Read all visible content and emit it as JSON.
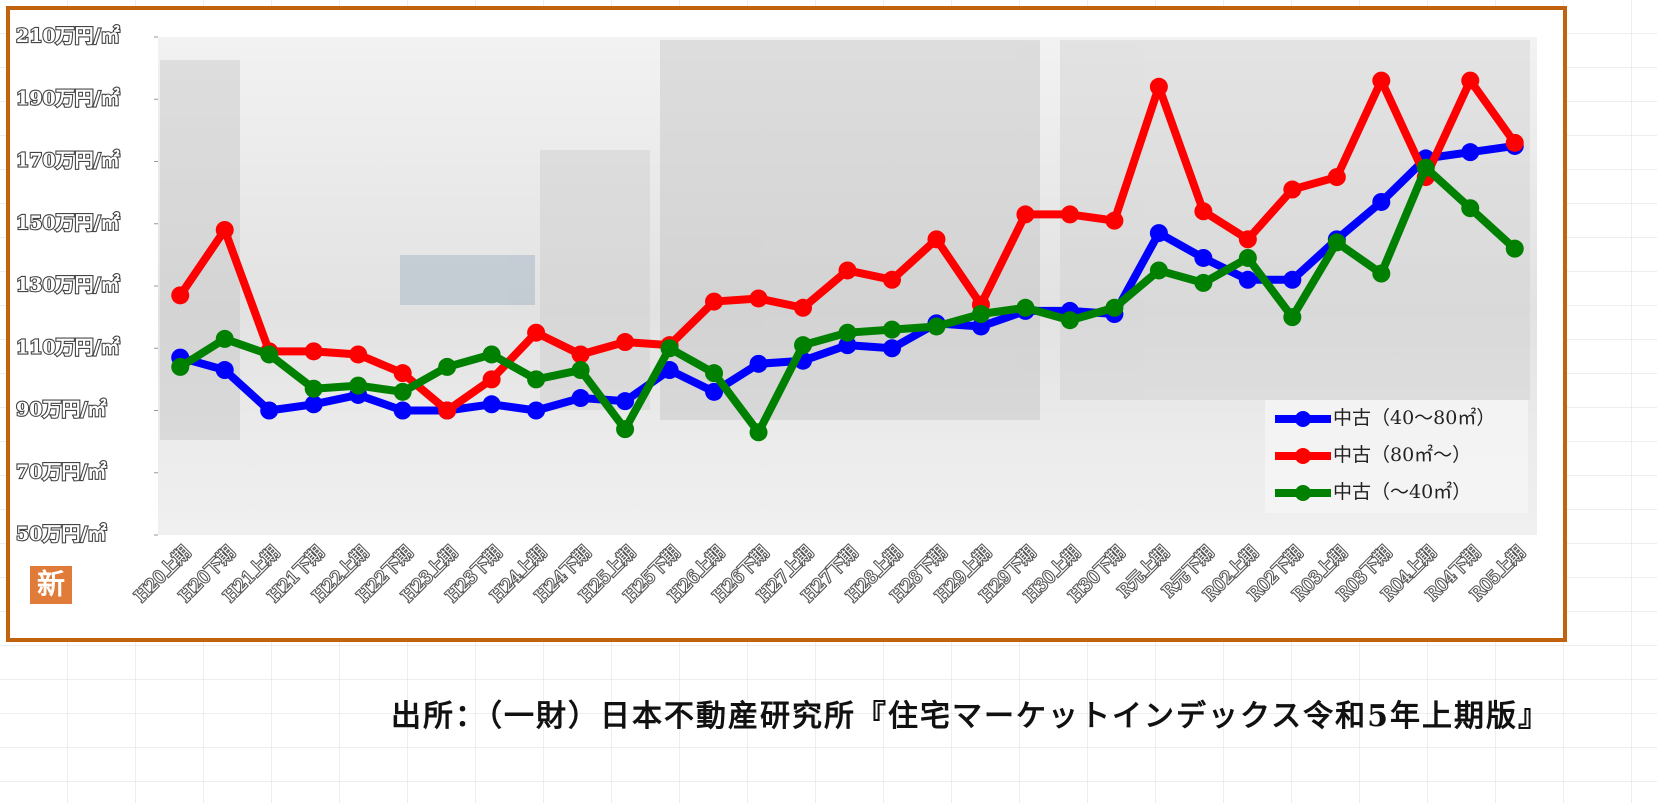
{
  "badge": "新",
  "source": "出所：（一財）日本不動産研究所『住宅マーケットインデックス令和5年上期版』",
  "chart_data": {
    "type": "line",
    "categories": [
      "H20上期",
      "H20下期",
      "H21上期",
      "H21下期",
      "H22上期",
      "H22下期",
      "H23上期",
      "H23下期",
      "H24上期",
      "H24下期",
      "H25上期",
      "H25下期",
      "H26上期",
      "H26下期",
      "H27上期",
      "H27下期",
      "H28上期",
      "H28下期",
      "H29上期",
      "H29下期",
      "H30上期",
      "H30下期",
      "R元上期",
      "R元下期",
      "R02上期",
      "R02下期",
      "R03上期",
      "R03下期",
      "R04上期",
      "R04下期",
      "R05上期"
    ],
    "series": [
      {
        "name": "中古（40～80㎡）",
        "color": "#0000ff",
        "values": [
          107,
          103,
          90,
          92,
          95,
          90,
          90,
          92,
          90,
          94,
          93,
          103,
          96,
          105,
          106,
          111,
          110,
          118,
          117,
          122,
          122,
          121,
          147,
          139,
          132,
          132,
          145,
          157,
          171,
          173,
          175
        ]
      },
      {
        "name": "中古（80㎡～）",
        "color": "#ff0000",
        "values": [
          127,
          148,
          109,
          109,
          108,
          102,
          90,
          100,
          115,
          108,
          112,
          111,
          125,
          126,
          123,
          135,
          132,
          145,
          124,
          153,
          153,
          151,
          194,
          154,
          145,
          161,
          165,
          196,
          165,
          196,
          176
        ]
      },
      {
        "name": "中古（～40㎡）",
        "color": "#008000",
        "values": [
          104,
          113,
          108,
          97,
          98,
          96,
          104,
          108,
          100,
          103,
          84,
          110,
          102,
          83,
          111,
          115,
          116,
          117,
          121,
          123,
          119,
          123,
          135,
          131,
          139,
          120,
          144,
          134,
          168,
          155,
          142
        ]
      }
    ],
    "ylim": [
      50,
      210
    ],
    "yticks": [
      {
        "value": 50,
        "label": "50万円/㎡"
      },
      {
        "value": 70,
        "label": "70万円/㎡"
      },
      {
        "value": 90,
        "label": "90万円/㎡"
      },
      {
        "value": 110,
        "label": "110万円/㎡"
      },
      {
        "value": 130,
        "label": "130万円/㎡"
      },
      {
        "value": 150,
        "label": "150万円/㎡"
      },
      {
        "value": 170,
        "label": "170万円/㎡"
      },
      {
        "value": 190,
        "label": "190万円/㎡"
      },
      {
        "value": 210,
        "label": "210万円/㎡"
      }
    ],
    "legend": "lower right"
  }
}
